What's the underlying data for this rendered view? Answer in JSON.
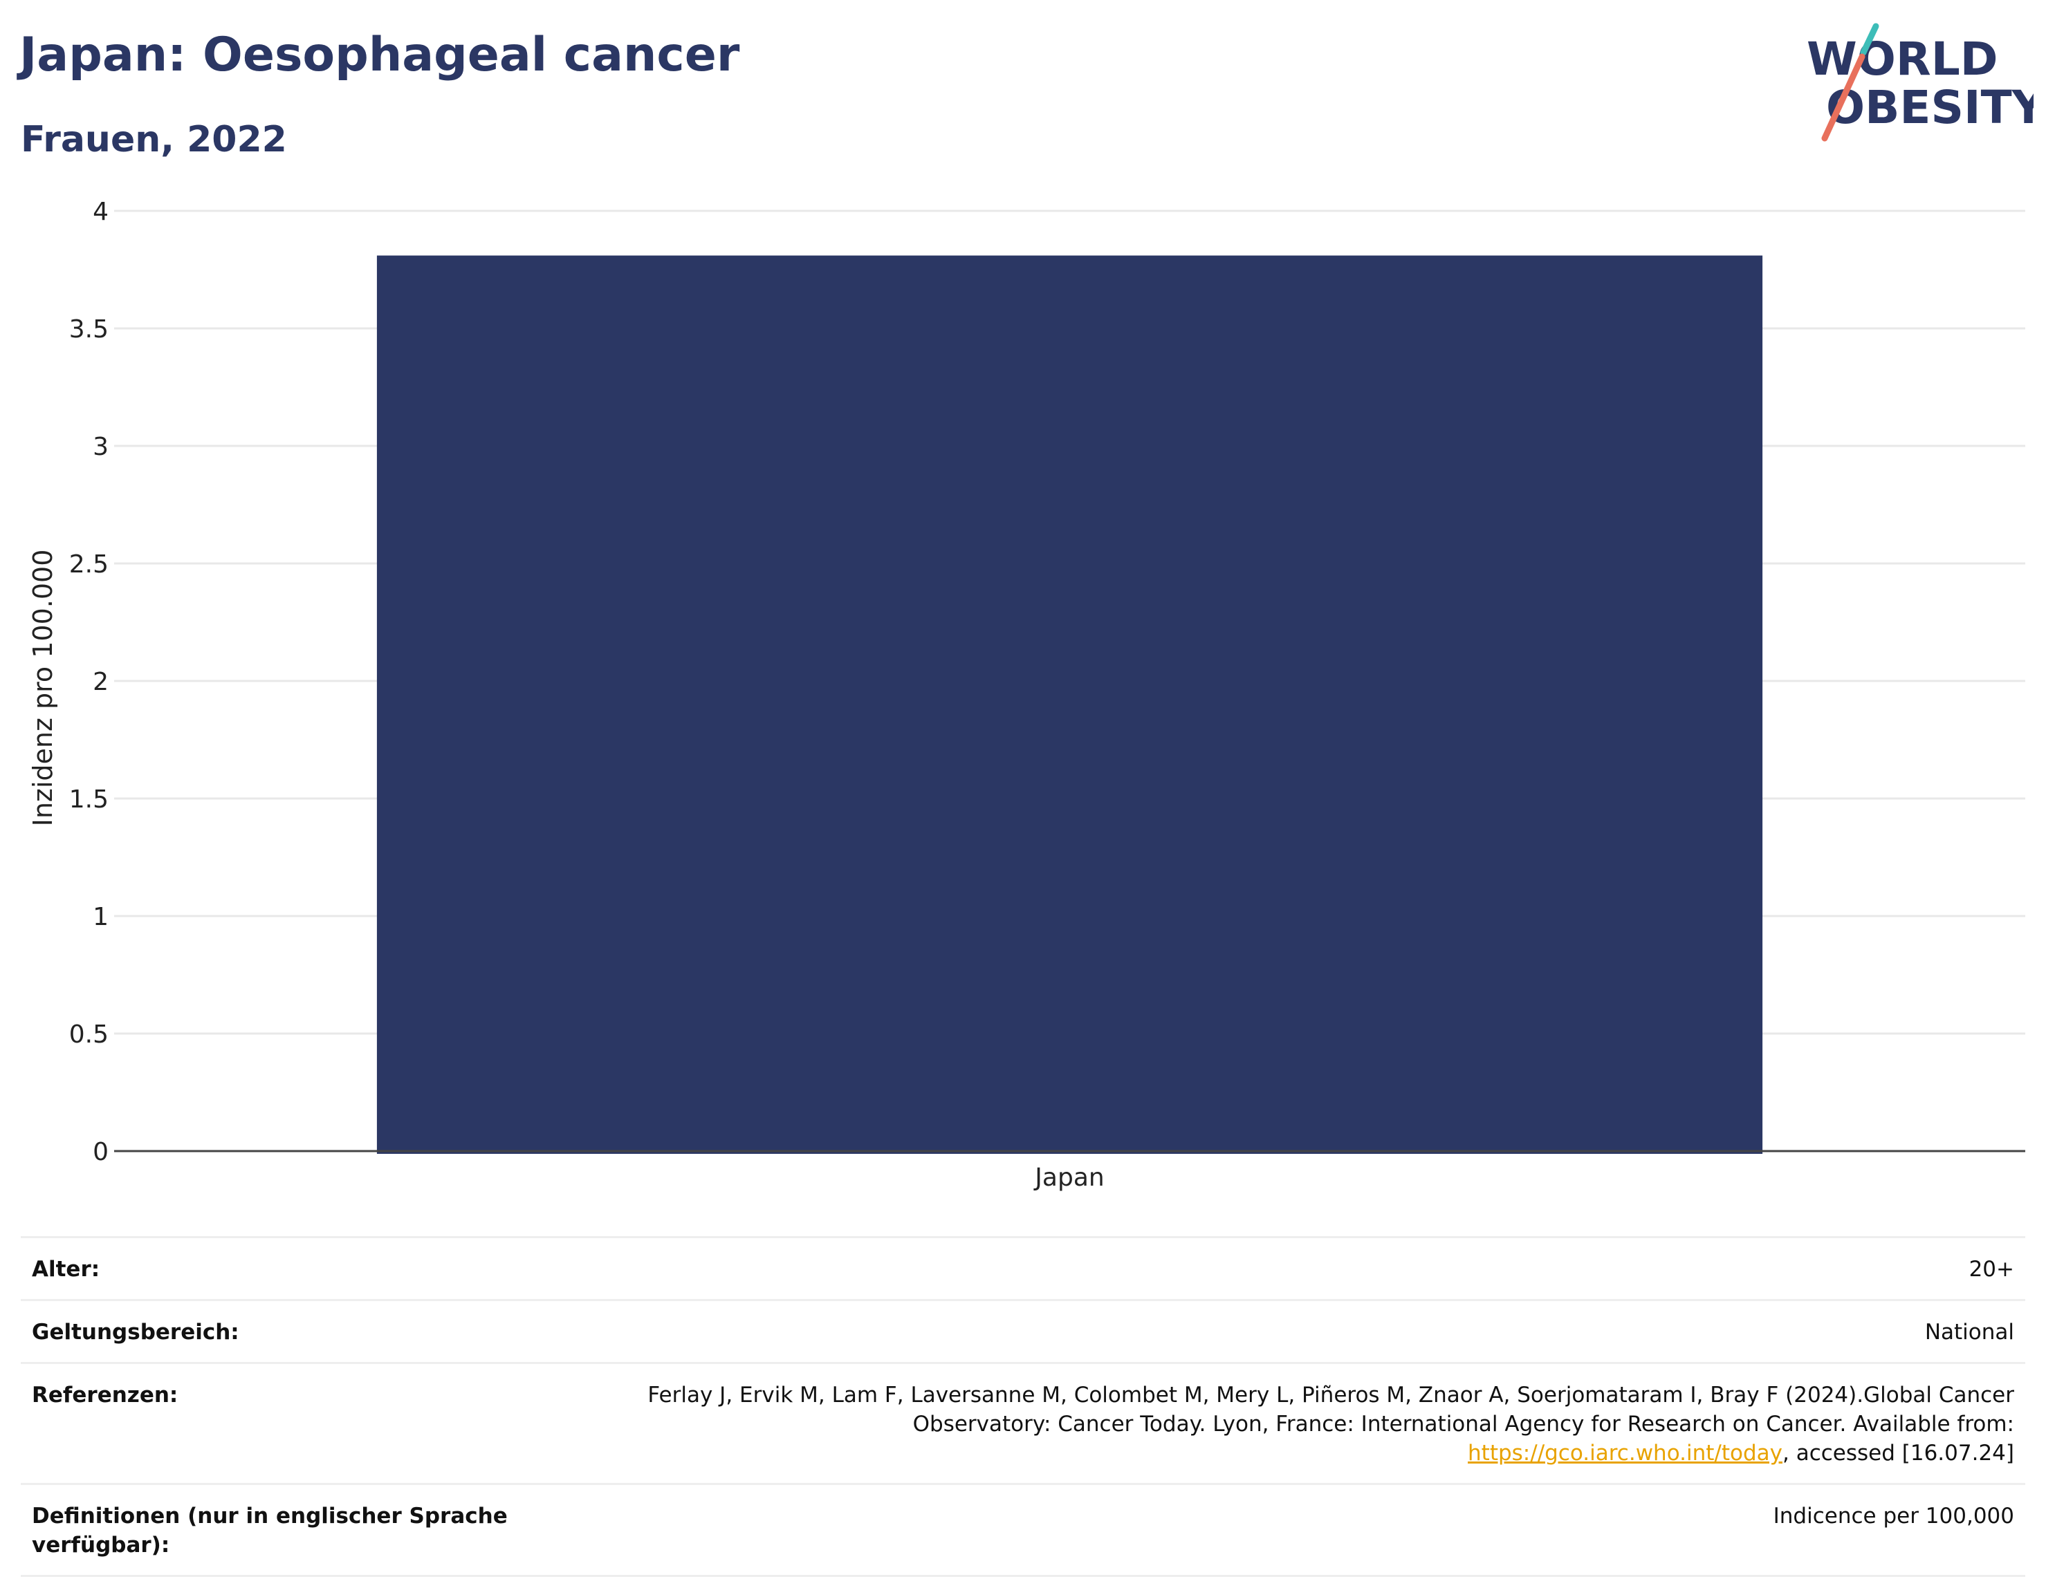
{
  "header": {
    "title": "Japan: Oesophageal cancer",
    "subtitle": "Frauen, 2022"
  },
  "logo": {
    "line1": "WORLD",
    "line2": "OBESITY"
  },
  "colors": {
    "bar": "#2b3764",
    "title": "#2b3764",
    "logo_teal": "#3dbdb8",
    "logo_coral": "#e8705c",
    "link": "#e8a200"
  },
  "chart_data": {
    "type": "bar",
    "categories": [
      "Japan"
    ],
    "values": [
      3.81
    ],
    "ylabel": "Inzidenz pro 100.000",
    "xlabel": "",
    "ylim": [
      0,
      4
    ],
    "yticks": [
      "0",
      "0.5",
      "1",
      "1.5",
      "2",
      "2.5",
      "3",
      "3.5",
      "4"
    ],
    "grid": true
  },
  "info": {
    "rows": [
      {
        "label": "Alter:",
        "value": "20+"
      },
      {
        "label": "Geltungsbereich:",
        "value": "National"
      },
      {
        "label": "Referenzen:",
        "value_pre": "Ferlay J, Ervik M, Lam F, Laversanne M, Colombet M, Mery L, Piñeros M, Znaor A, Soerjomataram I, Bray F (2024).Global Cancer Observatory: Cancer Today. Lyon, France: International Agency for Research on Cancer. Available from: ",
        "link": "https://gco.iarc.who.int/today",
        "value_post": ", accessed [16.07.24]"
      },
      {
        "label": "Definitionen (nur in englischer Sprache verfügbar):",
        "value": "Indicence per 100,000"
      }
    ]
  }
}
